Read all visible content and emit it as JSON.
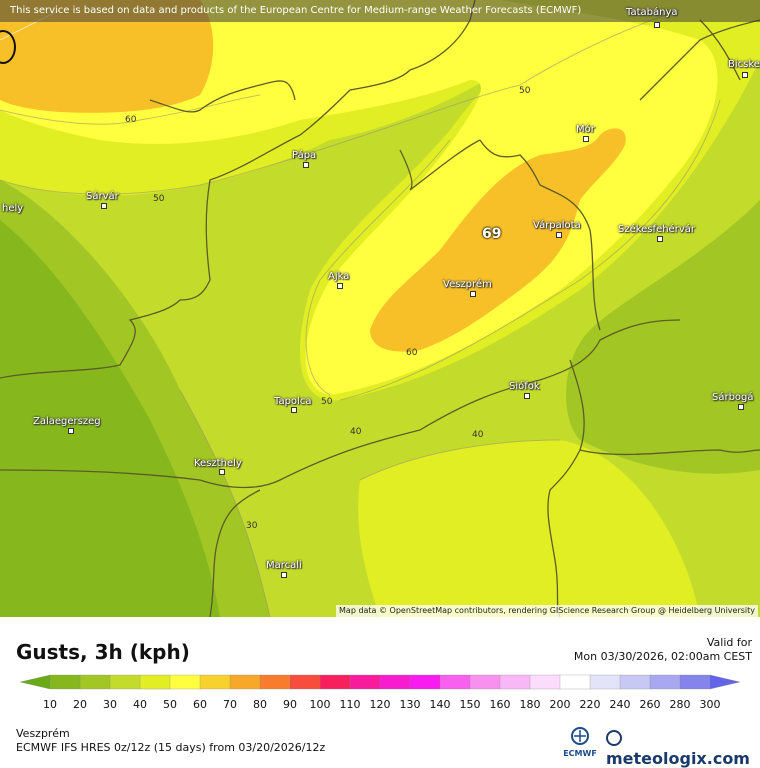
{
  "banner": {
    "text": "This service is based on data and products of the European Centre for Medium-range Weather Forecasts (ECMWF)"
  },
  "attribution": {
    "text": "Map data © OpenStreetMap contributors, rendering GIScience Research Group @ Heidelberg University"
  },
  "cities": [
    {
      "id": "tatabanya",
      "name": "Tatabánya"
    },
    {
      "id": "bicske",
      "name": "Bicske"
    },
    {
      "id": "mor",
      "name": "Mór"
    },
    {
      "id": "papa",
      "name": "Pápa"
    },
    {
      "id": "sarvar",
      "name": "Sárvár"
    },
    {
      "id": "hely",
      "name": "hely"
    },
    {
      "id": "varpalota",
      "name": "Várpalota"
    },
    {
      "id": "szekesfehervar",
      "name": "Székesfehérvár"
    },
    {
      "id": "ajka",
      "name": "Ajka"
    },
    {
      "id": "veszprem",
      "name": "Veszprém"
    },
    {
      "id": "siofok",
      "name": "Siófok"
    },
    {
      "id": "tapolca",
      "name": "Tapolca"
    },
    {
      "id": "sarbogard",
      "name": "Sárbogá"
    },
    {
      "id": "zalaegerszeg",
      "name": "Zalaegerszeg"
    },
    {
      "id": "keszthely",
      "name": "Keszthely"
    },
    {
      "id": "marcali",
      "name": "Marcali"
    }
  ],
  "contour_labels": [
    "50",
    "60",
    "50",
    "60",
    "50",
    "40",
    "40",
    "30"
  ],
  "max_value": "69",
  "legend": {
    "title": "Gusts, 3h (kph)",
    "valid_for": "Valid for",
    "valid_time": "Mon 03/30/2026, 02:00am CEST",
    "ticks": [
      "10",
      "20",
      "30",
      "40",
      "50",
      "60",
      "70",
      "80",
      "90",
      "100",
      "110",
      "120",
      "130",
      "140",
      "150",
      "160",
      "180",
      "200",
      "220",
      "240",
      "260",
      "280",
      "300"
    ],
    "colors": [
      "#6aaa18",
      "#86b81e",
      "#a2c624",
      "#c3dc2c",
      "#e2ee24",
      "#ffff40",
      "#f8d22c",
      "#f8a828",
      "#f87c2c",
      "#f84c3c",
      "#f8205c",
      "#f81c9c",
      "#f81cd0",
      "#f81cf0",
      "#f860f0",
      "#f890f0",
      "#f8b8f8",
      "#fbdcfb",
      "#ffffff",
      "#e4e4f8",
      "#c8c8f4",
      "#a8a8f0",
      "#8484ec",
      "#6464e8"
    ],
    "location": "Veszprém",
    "model": "ECMWF IFS HRES 0z/12z (15 days) from  03/20/2026/12z",
    "ecmwf_logo_text": "ECMWF",
    "brand": "meteologix.com"
  }
}
